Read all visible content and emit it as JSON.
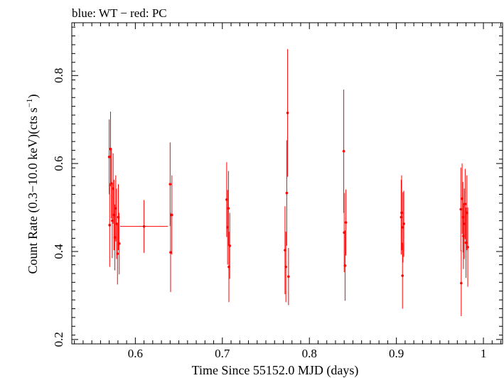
{
  "chart_data": {
    "type": "scatter",
    "title": "blue: WT − red: PC",
    "xlabel": "Time Since 55152.0 MJD (days)",
    "ylabel": "Count Rate (0.3−10.0 keV)(cts s",
    "ylabel_sup": "−1",
    "ylabel_end": ")",
    "xlim": [
      0.527,
      1.022
    ],
    "ylim": [
      0.19,
      0.92
    ],
    "xticks": [
      0.6,
      0.7,
      0.8,
      0.9,
      1.0
    ],
    "xtick_labels": [
      "0.6",
      "0.7",
      "0.8",
      "0.9",
      "1"
    ],
    "yticks": [
      0.2,
      0.4,
      0.6,
      0.8
    ],
    "ytick_labels": [
      "0.2",
      "0.4",
      "0.6",
      "0.8"
    ],
    "grid": false,
    "legend": "none",
    "series": [
      {
        "name": "PC",
        "color": "#ff0000",
        "points": [
          {
            "x": 0.57,
            "y": 0.615,
            "yerr": 0.085
          },
          {
            "x": 0.5705,
            "y": 0.46,
            "yerr": 0.095
          },
          {
            "x": 0.5715,
            "y": 0.633,
            "yerr": 0.085
          },
          {
            "x": 0.5725,
            "y": 0.555,
            "yerr": 0.08
          },
          {
            "x": 0.5735,
            "y": 0.47,
            "yerr": 0.085
          },
          {
            "x": 0.5745,
            "y": 0.543,
            "yerr": 0.08
          },
          {
            "x": 0.5755,
            "y": 0.483,
            "yerr": 0.08
          },
          {
            "x": 0.5765,
            "y": 0.432,
            "yerr": 0.075
          },
          {
            "x": 0.5775,
            "y": 0.498,
            "yerr": 0.075
          },
          {
            "x": 0.5785,
            "y": 0.463,
            "yerr": 0.08
          },
          {
            "x": 0.5795,
            "y": 0.395,
            "yerr": 0.07
          },
          {
            "x": 0.5805,
            "y": 0.478,
            "yerr": 0.075
          },
          {
            "x": 0.5815,
            "y": 0.418,
            "yerr": 0.07
          },
          {
            "x": 0.61,
            "y": 0.457,
            "yerr": 0.06,
            "xerr": 0.0275
          },
          {
            "x": 0.64,
            "y": 0.553,
            "yerr": 0.095
          },
          {
            "x": 0.6405,
            "y": 0.398,
            "yerr": 0.09
          },
          {
            "x": 0.642,
            "y": 0.483,
            "yerr": 0.09
          },
          {
            "x": 0.705,
            "y": 0.518,
            "yerr": 0.085
          },
          {
            "x": 0.706,
            "y": 0.455,
            "yerr": 0.085
          },
          {
            "x": 0.707,
            "y": 0.498,
            "yerr": 0.085
          },
          {
            "x": 0.7075,
            "y": 0.365,
            "yerr": 0.08
          },
          {
            "x": 0.7085,
            "y": 0.413,
            "yerr": 0.075
          },
          {
            "x": 0.772,
            "y": 0.403,
            "yerr": 0.1
          },
          {
            "x": 0.773,
            "y": 0.365,
            "yerr": 0.08
          },
          {
            "x": 0.774,
            "y": 0.533,
            "yerr": 0.12
          },
          {
            "x": 0.775,
            "y": 0.715,
            "yerr": 0.145
          },
          {
            "x": 0.776,
            "y": 0.343,
            "yerr": 0.065
          },
          {
            "x": 0.8395,
            "y": 0.628,
            "yerr": 0.14
          },
          {
            "x": 0.84,
            "y": 0.443,
            "yerr": 0.09
          },
          {
            "x": 0.841,
            "y": 0.368,
            "yerr": 0.08
          },
          {
            "x": 0.842,
            "y": 0.466,
            "yerr": 0.075
          },
          {
            "x": 0.9055,
            "y": 0.478,
            "yerr": 0.085
          },
          {
            "x": 0.906,
            "y": 0.488,
            "yerr": 0.085
          },
          {
            "x": 0.907,
            "y": 0.345,
            "yerr": 0.075
          },
          {
            "x": 0.9075,
            "y": 0.455,
            "yerr": 0.08
          },
          {
            "x": 0.9085,
            "y": 0.463,
            "yerr": 0.075
          },
          {
            "x": 0.974,
            "y": 0.496,
            "yerr": 0.095
          },
          {
            "x": 0.9745,
            "y": 0.328,
            "yerr": 0.075
          },
          {
            "x": 0.9755,
            "y": 0.52,
            "yerr": 0.08
          },
          {
            "x": 0.9765,
            "y": 0.478,
            "yerr": 0.08
          },
          {
            "x": 0.977,
            "y": 0.435,
            "yerr": 0.075
          },
          {
            "x": 0.978,
            "y": 0.463,
            "yerr": 0.08
          },
          {
            "x": 0.979,
            "y": 0.508,
            "yerr": 0.08
          },
          {
            "x": 0.98,
            "y": 0.42,
            "yerr": 0.08
          },
          {
            "x": 0.981,
            "y": 0.488,
            "yerr": 0.085
          },
          {
            "x": 0.982,
            "y": 0.41,
            "yerr": 0.09
          }
        ]
      }
    ]
  }
}
